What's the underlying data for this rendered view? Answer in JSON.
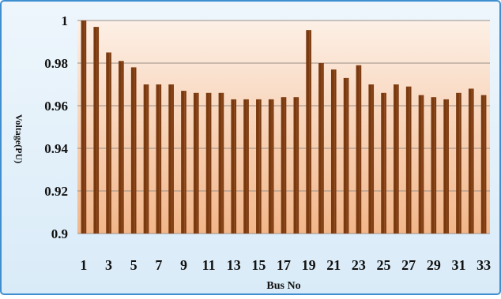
{
  "chart_data": {
    "type": "bar",
    "title": "",
    "xlabel": "Bus No",
    "ylabel": "Voltage(PU)",
    "ylim": [
      0.9,
      1.0
    ],
    "yticks": [
      0.9,
      0.92,
      0.94,
      0.96,
      0.98,
      1
    ],
    "ytick_labels": [
      "0.9",
      "0.92",
      "0.94",
      "0.96",
      "0.98",
      "1"
    ],
    "grid": true,
    "legend": "none",
    "categories": [
      "1",
      "2",
      "3",
      "4",
      "5",
      "6",
      "7",
      "8",
      "9",
      "10",
      "11",
      "12",
      "13",
      "14",
      "15",
      "16",
      "17",
      "18",
      "19",
      "20",
      "21",
      "22",
      "23",
      "24",
      "25",
      "26",
      "27",
      "28",
      "29",
      "30",
      "31",
      "32",
      "33"
    ],
    "xtick_labels": [
      "1",
      "3",
      "5",
      "7",
      "9",
      "11",
      "13",
      "15",
      "17",
      "19",
      "21",
      "23",
      "25",
      "27",
      "29",
      "31",
      "33"
    ],
    "values": [
      1.0,
      0.997,
      0.985,
      0.981,
      0.978,
      0.97,
      0.97,
      0.97,
      0.967,
      0.966,
      0.966,
      0.966,
      0.963,
      0.963,
      0.963,
      0.963,
      0.964,
      0.964,
      0.9955,
      0.98,
      0.977,
      0.973,
      0.979,
      0.97,
      0.966,
      0.97,
      0.969,
      0.965,
      0.964,
      0.963,
      0.966,
      0.968,
      0.965
    ],
    "colors": {
      "bar": "#7a3a10",
      "bar_highlight": "#a45a2a",
      "plot_bg_top": "#fdf0e6",
      "plot_bg_bottom": "#f2b68a",
      "frame_border": "#3f8fd0",
      "frame_bg": "#e6f2fb",
      "grid": "#9a8f88"
    }
  }
}
